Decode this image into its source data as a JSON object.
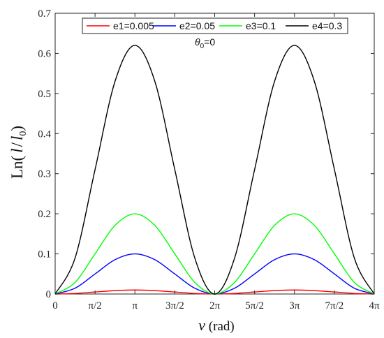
{
  "chart_data": {
    "type": "line",
    "x": {
      "unit": "rad",
      "range": [
        0,
        12.566370614359172
      ],
      "ticks": [
        {
          "value": 0,
          "label": "0"
        },
        {
          "value": 1.5707963267948966,
          "label": "π/2"
        },
        {
          "value": 3.141592653589793,
          "label": "π"
        },
        {
          "value": 4.71238898038469,
          "label": "3π/2"
        },
        {
          "value": 6.283185307179586,
          "label": "2π"
        },
        {
          "value": 7.853981633974483,
          "label": "5π/2"
        },
        {
          "value": 9.42477796076938,
          "label": "3π"
        },
        {
          "value": 10.995574287564276,
          "label": "7π/2"
        },
        {
          "value": 12.566370614359172,
          "label": "4π"
        }
      ]
    },
    "y": {
      "range": [
        0,
        0.7
      ],
      "ticks": [
        0,
        0.1,
        0.2,
        0.3,
        0.4,
        0.5,
        0.6,
        0.7
      ]
    },
    "xlabel": {
      "symbol": "ν",
      "unit": " (rad)"
    },
    "ylabel": {
      "prefix": "Ln(",
      "l": "l",
      "sep": "/",
      "l0": "l",
      "sub": "0",
      "suffix": ")"
    },
    "annotation": {
      "symbol": "θ",
      "sub": "0",
      "text": "=0"
    },
    "legend": {
      "position": "top"
    },
    "series": [
      {
        "name": "e1=0.005",
        "color": "#ff0000",
        "x": [
          0,
          0.785398,
          1.570796,
          2.356194,
          3.141593,
          3.926991,
          4.712389,
          5.497787,
          6.283185,
          7.068583,
          7.853982,
          8.63938,
          9.424778,
          10.210176,
          11.0,
          11.780972,
          12.566371
        ],
        "y": [
          0,
          0.0015,
          0.005,
          0.0085,
          0.01,
          0.0085,
          0.005,
          0.0015,
          0,
          0.0015,
          0.005,
          0.0085,
          0.01,
          0.0085,
          0.005,
          0.0015,
          0
        ]
      },
      {
        "name": "e2=0.05",
        "color": "#0000ff",
        "x": [
          0,
          0.785398,
          1.570796,
          2.356194,
          3.141593,
          3.926991,
          4.712389,
          5.497787,
          6.283185,
          7.068583,
          7.853982,
          8.63938,
          9.424778,
          10.210176,
          11.0,
          11.780972,
          12.566371
        ],
        "y": [
          0,
          0.0145,
          0.05,
          0.0855,
          0.1,
          0.0855,
          0.05,
          0.0145,
          0,
          0.0145,
          0.05,
          0.0855,
          0.1,
          0.0855,
          0.05,
          0.0145,
          0
        ]
      },
      {
        "name": "e3=0.1",
        "color": "#00ff00",
        "x": [
          0,
          0.785398,
          1.570796,
          2.356194,
          3.141593,
          3.926991,
          4.712389,
          5.497787,
          6.283185,
          7.068583,
          7.853982,
          8.63938,
          9.424778,
          10.210176,
          11.0,
          11.780972,
          12.566371
        ],
        "y": [
          0,
          0.029,
          0.1,
          0.171,
          0.2,
          0.171,
          0.1,
          0.029,
          0,
          0.029,
          0.1,
          0.171,
          0.2,
          0.171,
          0.1,
          0.029,
          0
        ]
      },
      {
        "name": "e4=0.3",
        "color": "#000000",
        "x": [
          0,
          0.785398,
          1.570796,
          2.356194,
          3.141593,
          3.926991,
          4.712389,
          5.497787,
          6.283185,
          7.068583,
          7.853982,
          8.63938,
          9.424778,
          10.210176,
          11.0,
          11.780972,
          12.566371
        ],
        "y": [
          0,
          0.09,
          0.31,
          0.53,
          0.62,
          0.53,
          0.31,
          0.09,
          0,
          0.09,
          0.31,
          0.53,
          0.62,
          0.53,
          0.31,
          0.09,
          0
        ]
      }
    ]
  }
}
